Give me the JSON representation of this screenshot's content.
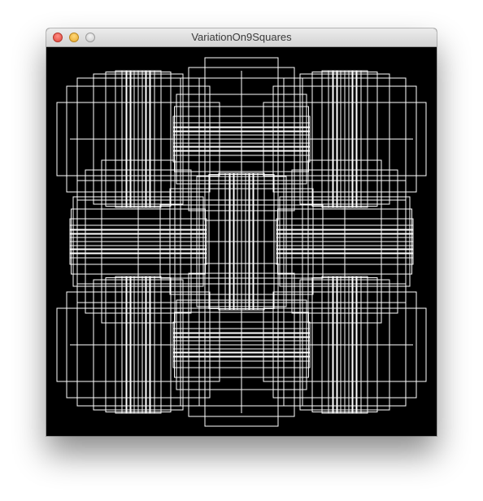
{
  "window": {
    "title": "VariationOn9Squares"
  },
  "canvas": {
    "background_color": "#000000",
    "stroke_color": "#ffffff"
  }
}
